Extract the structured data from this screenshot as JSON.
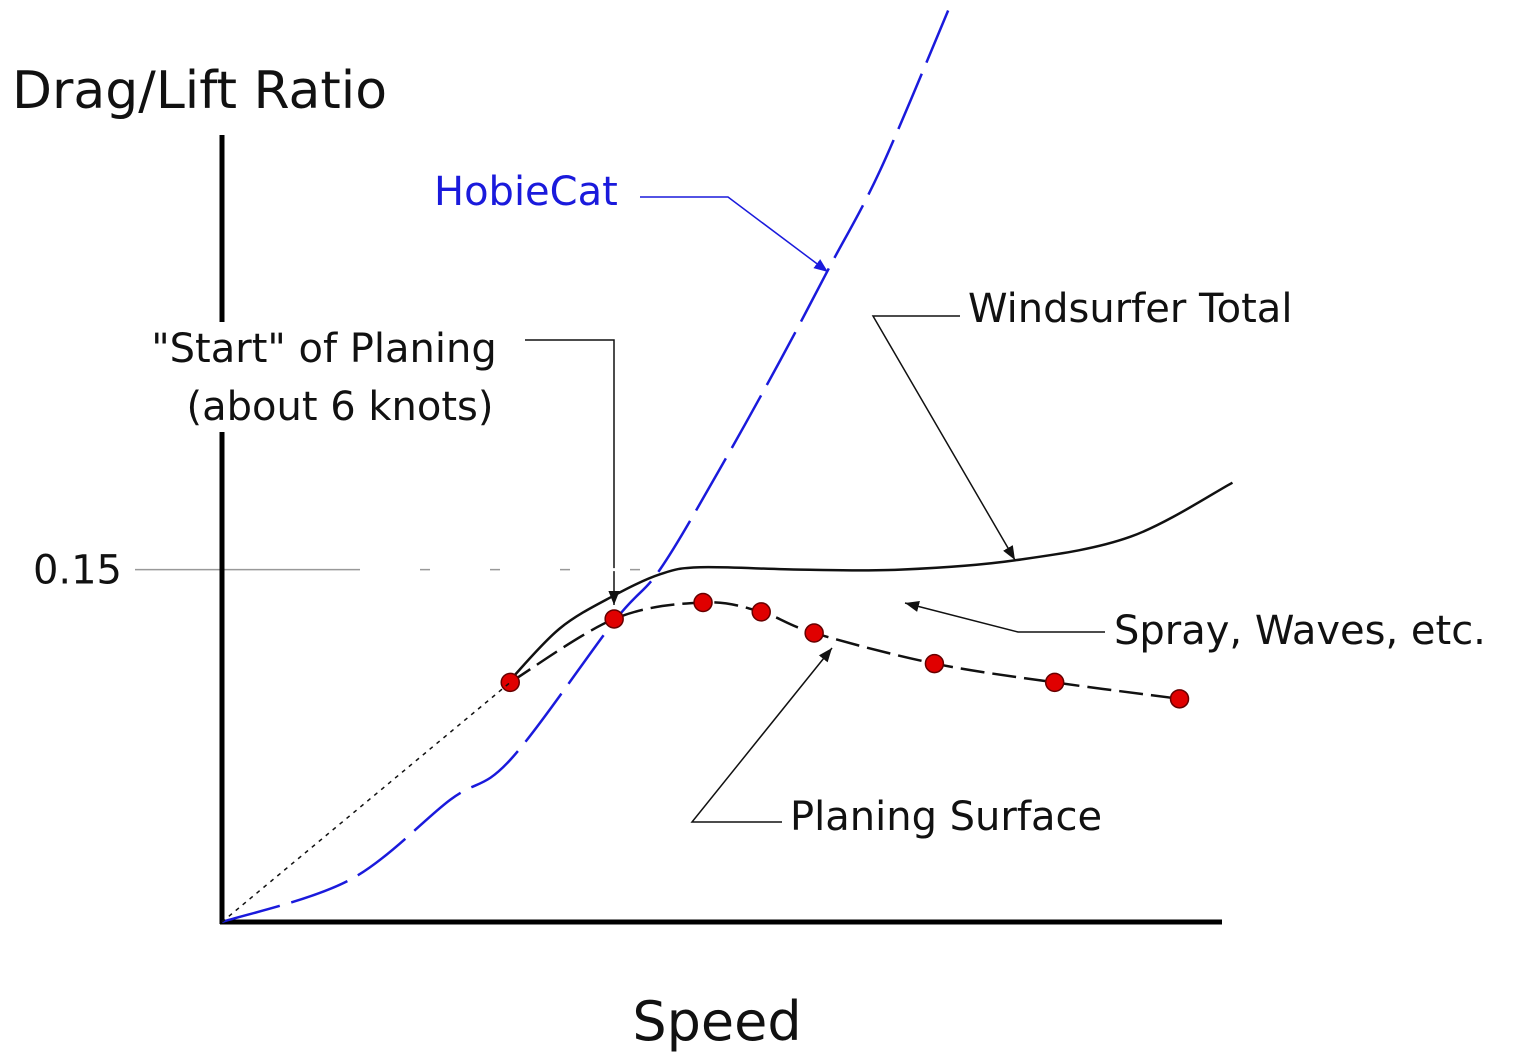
{
  "chart_data": {
    "type": "line",
    "title": "Drag/Lift Ratio",
    "x_label": "Speed",
    "xlim": [
      0,
      15.3
    ],
    "ylim": [
      0,
      0.335
    ],
    "yticks": [
      0.15
    ],
    "series": [
      {
        "name": "HobieCat",
        "color": "#1a1adc",
        "dash": "dashed",
        "x": [
          0,
          1.96,
          3.49,
          4.41,
          6.0,
          6.7,
          7.62,
          8.54,
          9.28,
          10.07,
          11.11
        ],
        "values": [
          0,
          0.018,
          0.052,
          0.069,
          0.128,
          0.15,
          0.193,
          0.239,
          0.278,
          0.32,
          0.388
        ]
      },
      {
        "name": "Windsurfer Total",
        "color": "#111111",
        "dash": "solid",
        "x": [
          4.41,
          5.17,
          6.0,
          6.7,
          7.32,
          8.85,
          10.38,
          12.14,
          13.9,
          15.46
        ],
        "values": [
          0.103,
          0.125,
          0.139,
          0.148,
          0.151,
          0.15,
          0.15,
          0.154,
          0.164,
          0.187
        ]
      },
      {
        "name": "Planing Surface",
        "color": "#111111",
        "dash": "dashed",
        "marker_color": "#e00000",
        "x": [
          4.41,
          6.0,
          7.36,
          8.25,
          9.06,
          10.9,
          12.74,
          14.65
        ],
        "values": [
          0.102,
          0.129,
          0.136,
          0.132,
          0.123,
          0.11,
          0.102,
          0.095
        ]
      },
      {
        "color": "#111111",
        "dash": "dotted",
        "x": [
          0,
          4.41
        ],
        "values": [
          0,
          0.102
        ]
      }
    ],
    "annotations": [
      "\"Start\" of Planing",
      "(about 6 knots)",
      "Spray, Waves, etc."
    ]
  }
}
